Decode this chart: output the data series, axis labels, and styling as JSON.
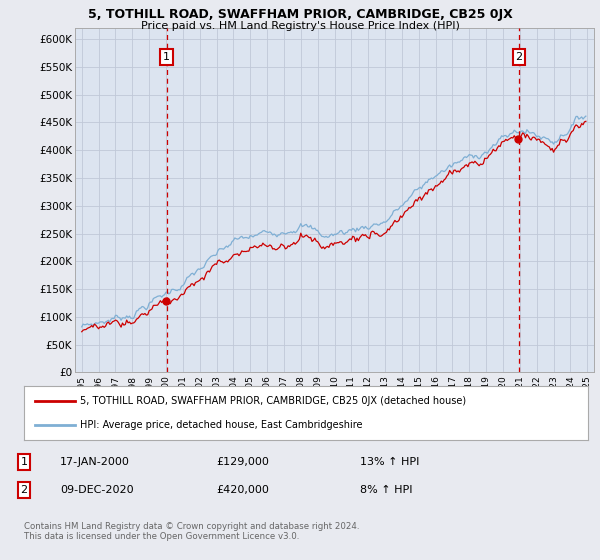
{
  "title1": "5, TOTHILL ROAD, SWAFFHAM PRIOR, CAMBRIDGE, CB25 0JX",
  "title2": "Price paid vs. HM Land Registry's House Price Index (HPI)",
  "ylim": [
    0,
    620000
  ],
  "yticks": [
    0,
    50000,
    100000,
    150000,
    200000,
    250000,
    300000,
    350000,
    400000,
    450000,
    500000,
    550000,
    600000
  ],
  "ytick_labels": [
    "£0",
    "£50K",
    "£100K",
    "£150K",
    "£200K",
    "£250K",
    "£300K",
    "£350K",
    "£400K",
    "£450K",
    "£500K",
    "£550K",
    "£600K"
  ],
  "red_line_color": "#cc0000",
  "blue_line_color": "#7fafd4",
  "grid_color": "#c0c8d8",
  "background_color": "#e8eaf0",
  "plot_bg_color": "#dce4f0",
  "sale1_date": "17-JAN-2000",
  "sale1_price": 129000,
  "sale1_hpi": "13% ↑ HPI",
  "sale1_year": 2000.04,
  "sale2_date": "09-DEC-2020",
  "sale2_price": 420000,
  "sale2_hpi": "8% ↑ HPI",
  "sale2_year": 2020.94,
  "legend_label1": "5, TOTHILL ROAD, SWAFFHAM PRIOR, CAMBRIDGE, CB25 0JX (detached house)",
  "legend_label2": "HPI: Average price, detached house, East Cambridgeshire",
  "footnote": "Contains HM Land Registry data © Crown copyright and database right 2024.\nThis data is licensed under the Open Government Licence v3.0."
}
